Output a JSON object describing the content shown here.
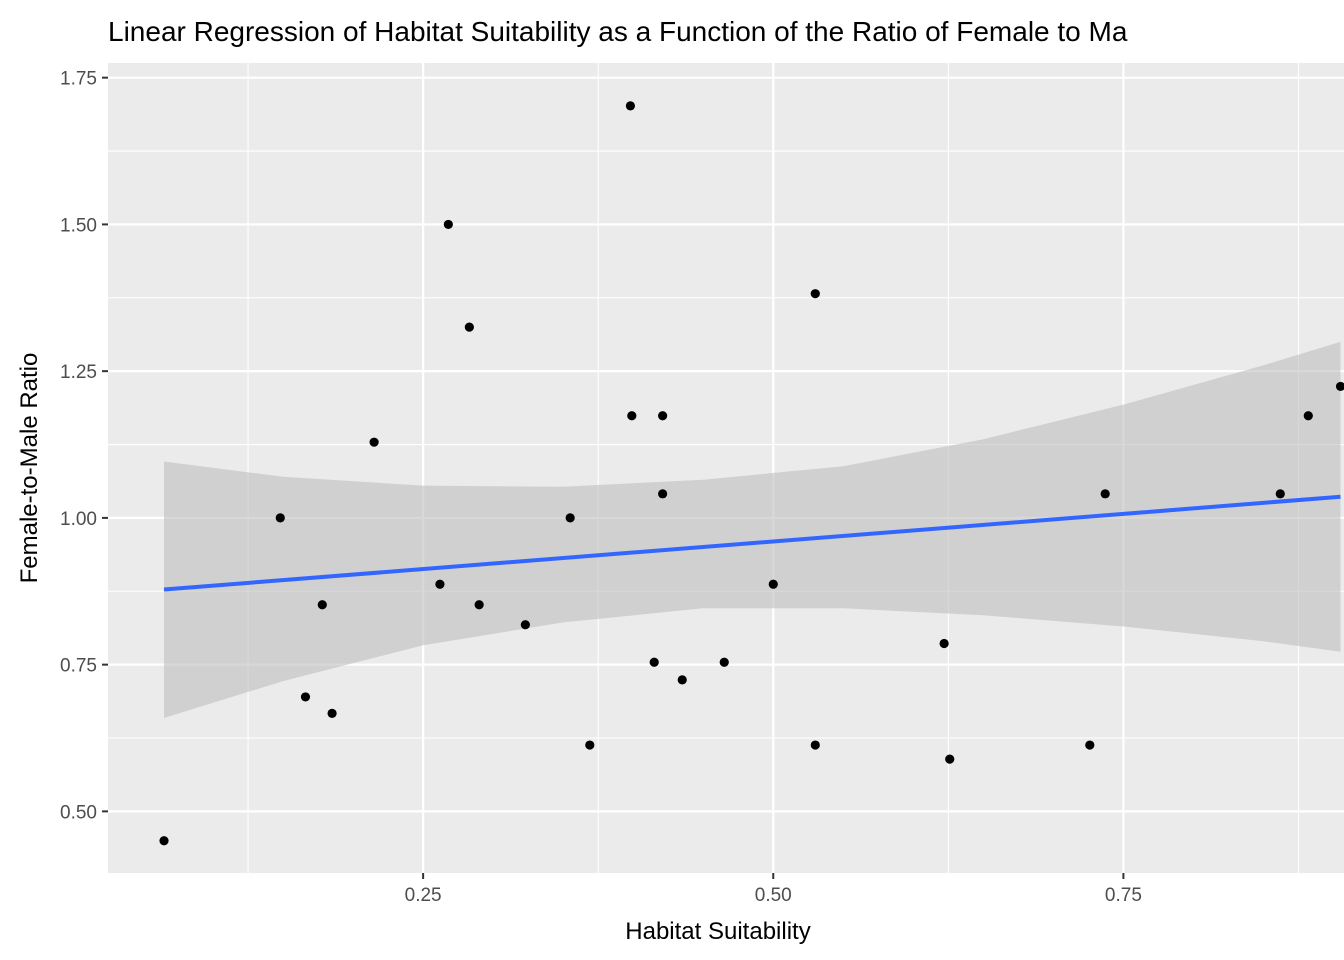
{
  "chart_data": {
    "type": "scatter",
    "title": "Linear Regression of Habitat Suitability as a Function of the Ratio of Female to Ma",
    "xlabel": "Habitat Suitability",
    "ylabel": "Female-to-Male Ratio",
    "xlim": [
      0.025,
      0.9075
    ],
    "ylim": [
      0.395,
      1.775
    ],
    "x_ticks": [
      0.25,
      0.5,
      0.75
    ],
    "x_tick_labels": [
      "0.25",
      "0.50",
      "0.75"
    ],
    "x_minor_ticks": [
      0.125,
      0.375,
      0.625,
      0.875
    ],
    "y_ticks": [
      0.5,
      0.75,
      1.0,
      1.25,
      1.5,
      1.75
    ],
    "y_tick_labels": [
      "0.50",
      "0.75",
      "1.00",
      "1.25",
      "1.50",
      "1.75"
    ],
    "y_minor_ticks": [
      0.625,
      0.875,
      1.125,
      1.375,
      1.625
    ],
    "grid": true,
    "panel_background": "#ebebeb",
    "grid_color": "#ffffff",
    "point_color": "#000000",
    "fit_line_color": "#3366ff",
    "ribbon_color": "#bebebe",
    "points": [
      {
        "x": 0.065,
        "y": 0.45
      },
      {
        "x": 0.148,
        "y": 1.0
      },
      {
        "x": 0.166,
        "y": 0.695
      },
      {
        "x": 0.178,
        "y": 0.852
      },
      {
        "x": 0.185,
        "y": 0.667
      },
      {
        "x": 0.215,
        "y": 1.129
      },
      {
        "x": 0.262,
        "y": 0.887
      },
      {
        "x": 0.268,
        "y": 1.5
      },
      {
        "x": 0.283,
        "y": 1.325
      },
      {
        "x": 0.29,
        "y": 0.852
      },
      {
        "x": 0.323,
        "y": 0.818
      },
      {
        "x": 0.355,
        "y": 1.0
      },
      {
        "x": 0.369,
        "y": 0.613
      },
      {
        "x": 0.398,
        "y": 1.702
      },
      {
        "x": 0.399,
        "y": 1.174
      },
      {
        "x": 0.415,
        "y": 0.754
      },
      {
        "x": 0.421,
        "y": 1.174
      },
      {
        "x": 0.421,
        "y": 1.041
      },
      {
        "x": 0.435,
        "y": 0.724
      },
      {
        "x": 0.465,
        "y": 0.754
      },
      {
        "x": 0.5,
        "y": 0.887
      },
      {
        "x": 0.53,
        "y": 0.613
      },
      {
        "x": 0.53,
        "y": 1.382
      },
      {
        "x": 0.622,
        "y": 0.786
      },
      {
        "x": 0.626,
        "y": 0.589
      },
      {
        "x": 0.726,
        "y": 0.613
      },
      {
        "x": 0.737,
        "y": 1.041
      },
      {
        "x": 0.862,
        "y": 1.041
      },
      {
        "x": 0.882,
        "y": 1.174
      },
      {
        "x": 0.905,
        "y": 1.224
      }
    ],
    "fit": {
      "x": [
        0.065,
        0.905
      ],
      "y": [
        0.878,
        1.036
      ]
    },
    "confidence_band": [
      {
        "x": 0.065,
        "lower": 0.659,
        "upper": 1.096
      },
      {
        "x": 0.15,
        "lower": 0.722,
        "upper": 1.07
      },
      {
        "x": 0.25,
        "lower": 0.783,
        "upper": 1.055
      },
      {
        "x": 0.35,
        "lower": 0.822,
        "upper": 1.053
      },
      {
        "x": 0.45,
        "lower": 0.846,
        "upper": 1.065
      },
      {
        "x": 0.55,
        "lower": 0.846,
        "upper": 1.088
      },
      {
        "x": 0.65,
        "lower": 0.834,
        "upper": 1.134
      },
      {
        "x": 0.75,
        "lower": 0.815,
        "upper": 1.193
      },
      {
        "x": 0.85,
        "lower": 0.79,
        "upper": 1.26
      },
      {
        "x": 0.905,
        "lower": 0.772,
        "upper": 1.3
      }
    ]
  }
}
